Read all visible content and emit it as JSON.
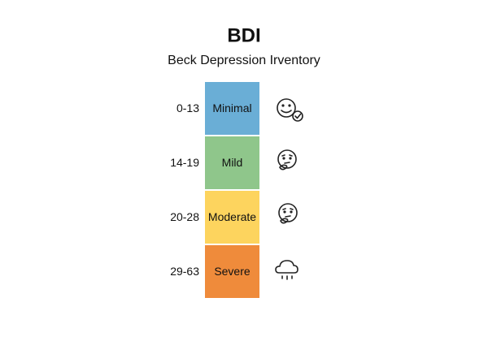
{
  "header": {
    "title": "BDI",
    "subtitle": "Beck Depression Irventory"
  },
  "levels": [
    {
      "range": "0-13",
      "label": "Minimal",
      "color": "#6aaed6"
    },
    {
      "range": "14-19",
      "label": "Mild",
      "color": "#8fc68b"
    },
    {
      "range": "20-28",
      "label": "Moderate",
      "color": "#fdd45e"
    },
    {
      "range": "29-63",
      "label": "Severe",
      "color": "#ef8b3b"
    }
  ]
}
